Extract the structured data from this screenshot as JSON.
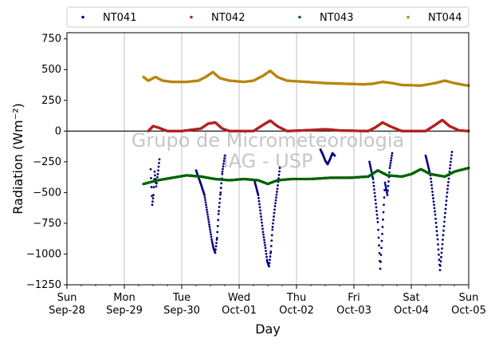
{
  "chart_data": {
    "type": "scatter",
    "title": "",
    "xlabel": "Day",
    "ylabel": "Radiation (Wm⁻²)",
    "ylim": [
      -1250,
      800
    ],
    "xlim": [
      "2014-09-28",
      "2014-10-05"
    ],
    "yticks": [
      -1250,
      -1000,
      -750,
      -500,
      -250,
      0,
      250,
      500,
      750
    ],
    "xticks": [
      {
        "date": "2014-09-28",
        "day": "Sun",
        "label": "Sep-28"
      },
      {
        "date": "2014-09-29",
        "day": "Mon",
        "label": "Sep-29"
      },
      {
        "date": "2014-09-30",
        "day": "Tue",
        "label": "Sep-30"
      },
      {
        "date": "2014-10-01",
        "day": "Wed",
        "label": "Oct-01"
      },
      {
        "date": "2014-10-02",
        "day": "Thu",
        "label": "Oct-02"
      },
      {
        "date": "2014-10-03",
        "day": "Fri",
        "label": "Oct-03"
      },
      {
        "date": "2014-10-04",
        "day": "Sat",
        "label": "Oct-04"
      },
      {
        "date": "2014-10-05",
        "day": "Sun",
        "label": "Oct-05"
      }
    ],
    "grid": "vertical",
    "legend": "top",
    "watermark": [
      "Grupo de Micrometeorologia",
      "IAG - USP"
    ],
    "series": [
      {
        "name": "NT041",
        "color": "#00007f",
        "points": [
          {
            "x": "2014-09-29 11:00",
            "y": -310
          },
          {
            "x": "2014-09-29 11:40",
            "y": -600
          },
          {
            "x": "2014-09-29 12:10",
            "y": -520
          },
          {
            "x": "2014-09-29 12:40",
            "y": -330
          },
          {
            "x": "2014-09-29 13:20",
            "y": -450
          },
          {
            "x": "2014-09-29 14:00",
            "y": -350
          },
          {
            "x": "2014-09-29 14:40",
            "y": -230
          },
          {
            "x": "2014-09-30 06:00",
            "y": -320
          },
          {
            "x": "2014-09-30 08:00",
            "y": -430
          },
          {
            "x": "2014-09-30 09:30",
            "y": -520
          },
          {
            "x": "2014-09-30 10:30",
            "y": -640
          },
          {
            "x": "2014-09-30 11:30",
            "y": -760
          },
          {
            "x": "2014-09-30 12:30",
            "y": -880
          },
          {
            "x": "2014-09-30 13:15",
            "y": -950
          },
          {
            "x": "2014-09-30 14:00",
            "y": -990
          },
          {
            "x": "2014-09-30 14:45",
            "y": -870
          },
          {
            "x": "2014-09-30 15:30",
            "y": -650
          },
          {
            "x": "2014-09-30 16:15",
            "y": -500
          },
          {
            "x": "2014-09-30 17:00",
            "y": -330
          },
          {
            "x": "2014-09-30 18:00",
            "y": -200
          },
          {
            "x": "2014-10-01 06:30",
            "y": -410
          },
          {
            "x": "2014-10-01 08:00",
            "y": -520
          },
          {
            "x": "2014-10-01 09:00",
            "y": -670
          },
          {
            "x": "2014-10-01 10:00",
            "y": -820
          },
          {
            "x": "2014-10-01 11:00",
            "y": -950
          },
          {
            "x": "2014-10-01 11:45",
            "y": -1060
          },
          {
            "x": "2014-10-01 12:30",
            "y": -1100
          },
          {
            "x": "2014-10-01 13:15",
            "y": -980
          },
          {
            "x": "2014-10-01 14:00",
            "y": -780
          },
          {
            "x": "2014-10-01 15:00",
            "y": -610
          },
          {
            "x": "2014-10-01 16:00",
            "y": -470
          },
          {
            "x": "2014-10-01 17:00",
            "y": -300
          },
          {
            "x": "2014-10-02 10:00",
            "y": -150
          },
          {
            "x": "2014-10-02 11:00",
            "y": -190
          },
          {
            "x": "2014-10-02 12:00",
            "y": -240
          },
          {
            "x": "2014-10-02 13:00",
            "y": -270
          },
          {
            "x": "2014-10-02 14:00",
            "y": -230
          },
          {
            "x": "2014-10-02 15:00",
            "y": -180
          },
          {
            "x": "2014-10-02 16:00",
            "y": -200
          },
          {
            "x": "2014-10-03 06:30",
            "y": -250
          },
          {
            "x": "2014-10-03 08:00",
            "y": -390
          },
          {
            "x": "2014-10-03 09:00",
            "y": -560
          },
          {
            "x": "2014-10-03 10:00",
            "y": -740
          },
          {
            "x": "2014-10-03 11:00",
            "y": -1120
          },
          {
            "x": "2014-10-03 12:00",
            "y": -780
          },
          {
            "x": "2014-10-03 13:00",
            "y": -420
          },
          {
            "x": "2014-10-03 14:00",
            "y": -520
          },
          {
            "x": "2014-10-03 15:00",
            "y": -300
          },
          {
            "x": "2014-10-03 16:00",
            "y": -180
          },
          {
            "x": "2014-10-04 06:00",
            "y": -200
          },
          {
            "x": "2014-10-04 08:00",
            "y": -360
          },
          {
            "x": "2014-10-04 09:00",
            "y": -520
          },
          {
            "x": "2014-10-04 10:00",
            "y": -680
          },
          {
            "x": "2014-10-04 11:00",
            "y": -880
          },
          {
            "x": "2014-10-04 12:00",
            "y": -1130
          },
          {
            "x": "2014-10-04 13:00",
            "y": -920
          },
          {
            "x": "2014-10-04 14:00",
            "y": -700
          },
          {
            "x": "2014-10-04 15:00",
            "y": -500
          },
          {
            "x": "2014-10-04 16:00",
            "y": -330
          },
          {
            "x": "2014-10-04 17:00",
            "y": -170
          }
        ]
      },
      {
        "name": "NT042",
        "color": "#b22222",
        "points": [
          {
            "x": "2014-09-29 10:00",
            "y": 0
          },
          {
            "x": "2014-09-29 12:00",
            "y": 40
          },
          {
            "x": "2014-09-29 14:00",
            "y": 30
          },
          {
            "x": "2014-09-29 18:00",
            "y": 0
          },
          {
            "x": "2014-09-30 00:00",
            "y": 0
          },
          {
            "x": "2014-09-30 08:00",
            "y": 20
          },
          {
            "x": "2014-09-30 11:00",
            "y": 60
          },
          {
            "x": "2014-09-30 14:00",
            "y": 70
          },
          {
            "x": "2014-09-30 17:00",
            "y": 20
          },
          {
            "x": "2014-09-30 20:00",
            "y": 0
          },
          {
            "x": "2014-10-01 06:00",
            "y": 0
          },
          {
            "x": "2014-10-01 10:00",
            "y": 50
          },
          {
            "x": "2014-10-01 13:00",
            "y": 85
          },
          {
            "x": "2014-10-01 16:00",
            "y": 40
          },
          {
            "x": "2014-10-01 20:00",
            "y": 0
          },
          {
            "x": "2014-10-02 08:00",
            "y": 10
          },
          {
            "x": "2014-10-02 12:00",
            "y": 15
          },
          {
            "x": "2014-10-02 18:00",
            "y": 5
          },
          {
            "x": "2014-10-03 06:00",
            "y": 0
          },
          {
            "x": "2014-10-03 09:00",
            "y": 30
          },
          {
            "x": "2014-10-03 12:00",
            "y": 70
          },
          {
            "x": "2014-10-03 15:00",
            "y": 40
          },
          {
            "x": "2014-10-03 20:00",
            "y": 0
          },
          {
            "x": "2014-10-04 06:00",
            "y": 0
          },
          {
            "x": "2014-10-04 10:00",
            "y": 50
          },
          {
            "x": "2014-10-04 13:00",
            "y": 90
          },
          {
            "x": "2014-10-04 16:00",
            "y": 40
          },
          {
            "x": "2014-10-04 20:00",
            "y": 5
          },
          {
            "x": "2014-10-05 00:00",
            "y": 0
          }
        ]
      },
      {
        "name": "NT043",
        "color": "#006400",
        "points": [
          {
            "x": "2014-09-29 08:00",
            "y": -430
          },
          {
            "x": "2014-09-29 14:00",
            "y": -400
          },
          {
            "x": "2014-09-29 20:00",
            "y": -380
          },
          {
            "x": "2014-09-30 02:00",
            "y": -360
          },
          {
            "x": "2014-09-30 08:00",
            "y": -370
          },
          {
            "x": "2014-09-30 14:00",
            "y": -390
          },
          {
            "x": "2014-09-30 20:00",
            "y": -400
          },
          {
            "x": "2014-10-01 02:00",
            "y": -390
          },
          {
            "x": "2014-10-01 08:00",
            "y": -400
          },
          {
            "x": "2014-10-01 12:00",
            "y": -430
          },
          {
            "x": "2014-10-01 16:00",
            "y": -400
          },
          {
            "x": "2014-10-01 22:00",
            "y": -390
          },
          {
            "x": "2014-10-02 06:00",
            "y": -390
          },
          {
            "x": "2014-10-02 14:00",
            "y": -380
          },
          {
            "x": "2014-10-02 22:00",
            "y": -380
          },
          {
            "x": "2014-10-03 06:00",
            "y": -370
          },
          {
            "x": "2014-10-03 10:00",
            "y": -320
          },
          {
            "x": "2014-10-03 14:00",
            "y": -360
          },
          {
            "x": "2014-10-03 20:00",
            "y": -370
          },
          {
            "x": "2014-10-04 00:00",
            "y": -350
          },
          {
            "x": "2014-10-04 04:00",
            "y": -310
          },
          {
            "x": "2014-10-04 08:00",
            "y": -350
          },
          {
            "x": "2014-10-04 14:00",
            "y": -370
          },
          {
            "x": "2014-10-04 18:00",
            "y": -330
          },
          {
            "x": "2014-10-04 22:00",
            "y": -310
          },
          {
            "x": "2014-10-05 00:00",
            "y": -300
          }
        ]
      },
      {
        "name": "NT044",
        "color": "#b8860b",
        "points": [
          {
            "x": "2014-09-29 08:00",
            "y": 440
          },
          {
            "x": "2014-09-29 10:00",
            "y": 410
          },
          {
            "x": "2014-09-29 13:00",
            "y": 440
          },
          {
            "x": "2014-09-29 16:00",
            "y": 410
          },
          {
            "x": "2014-09-29 20:00",
            "y": 400
          },
          {
            "x": "2014-09-30 02:00",
            "y": 400
          },
          {
            "x": "2014-09-30 07:00",
            "y": 410
          },
          {
            "x": "2014-09-30 10:00",
            "y": 440
          },
          {
            "x": "2014-09-30 13:00",
            "y": 480
          },
          {
            "x": "2014-09-30 16:00",
            "y": 430
          },
          {
            "x": "2014-09-30 20:00",
            "y": 410
          },
          {
            "x": "2014-10-01 02:00",
            "y": 400
          },
          {
            "x": "2014-10-01 06:00",
            "y": 410
          },
          {
            "x": "2014-10-01 10:00",
            "y": 450
          },
          {
            "x": "2014-10-01 13:00",
            "y": 490
          },
          {
            "x": "2014-10-01 16:00",
            "y": 440
          },
          {
            "x": "2014-10-01 20:00",
            "y": 410
          },
          {
            "x": "2014-10-02 04:00",
            "y": 400
          },
          {
            "x": "2014-10-02 12:00",
            "y": 390
          },
          {
            "x": "2014-10-02 20:00",
            "y": 385
          },
          {
            "x": "2014-10-03 04:00",
            "y": 380
          },
          {
            "x": "2014-10-03 08:00",
            "y": 385
          },
          {
            "x": "2014-10-03 12:00",
            "y": 400
          },
          {
            "x": "2014-10-03 16:00",
            "y": 390
          },
          {
            "x": "2014-10-03 20:00",
            "y": 375
          },
          {
            "x": "2014-10-04 04:00",
            "y": 370
          },
          {
            "x": "2014-10-04 10:00",
            "y": 390
          },
          {
            "x": "2014-10-04 14:00",
            "y": 410
          },
          {
            "x": "2014-10-04 18:00",
            "y": 390
          },
          {
            "x": "2014-10-04 22:00",
            "y": 375
          },
          {
            "x": "2014-10-05 00:00",
            "y": 370
          }
        ]
      }
    ]
  }
}
